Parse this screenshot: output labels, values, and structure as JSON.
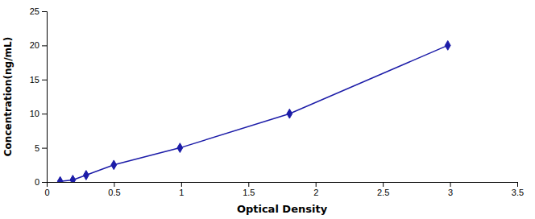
{
  "chart_data": {
    "type": "line",
    "xlabel": "Optical Density",
    "ylabel": "Concentration(ng/mL)",
    "x": [
      0.1,
      0.194,
      0.293,
      0.499,
      0.991,
      1.806,
      2.983
    ],
    "values": [
      0.1,
      0.3,
      1.0,
      2.5,
      5.0,
      10.0,
      20.0
    ],
    "color": "#1c1ca8",
    "marker": "diamond",
    "xlim": [
      0,
      3.5
    ],
    "ylim": [
      0,
      25
    ],
    "xticks": [
      0,
      0.5,
      1,
      1.5,
      2,
      2.5,
      3,
      3.5
    ],
    "yticks": [
      0,
      5,
      10,
      15,
      20,
      25
    ],
    "grid": false
  }
}
